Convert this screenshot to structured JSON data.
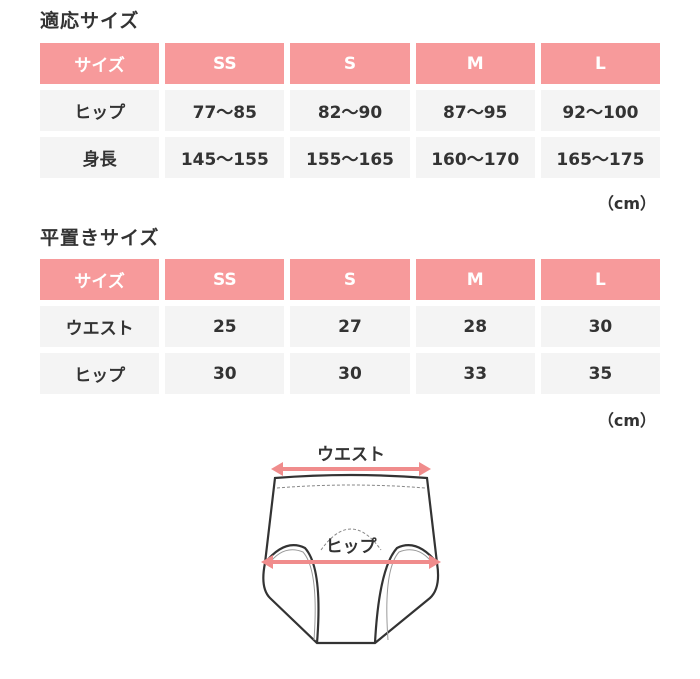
{
  "section1": {
    "title": "適応サイズ",
    "header": [
      "サイズ",
      "SS",
      "S",
      "M",
      "L"
    ],
    "rows": [
      [
        "ヒップ",
        "77〜85",
        "82〜90",
        "87〜95",
        "92〜100"
      ],
      [
        "身長",
        "145〜155",
        "155〜165",
        "160〜170",
        "165〜175"
      ]
    ],
    "unit": "（cm）"
  },
  "section2": {
    "title": "平置きサイズ",
    "header": [
      "サイズ",
      "SS",
      "S",
      "M",
      "L"
    ],
    "rows": [
      [
        "ウエスト",
        "25",
        "27",
        "28",
        "30"
      ],
      [
        "ヒップ",
        "30",
        "30",
        "33",
        "35"
      ]
    ],
    "unit": "（cm）"
  },
  "diagram": {
    "waist_label": "ウエスト",
    "hip_label": "ヒップ"
  },
  "colors": {
    "accent": "#f79a9b",
    "cell_bg": "#f4f4f4",
    "arrow": "#f08c8c"
  }
}
